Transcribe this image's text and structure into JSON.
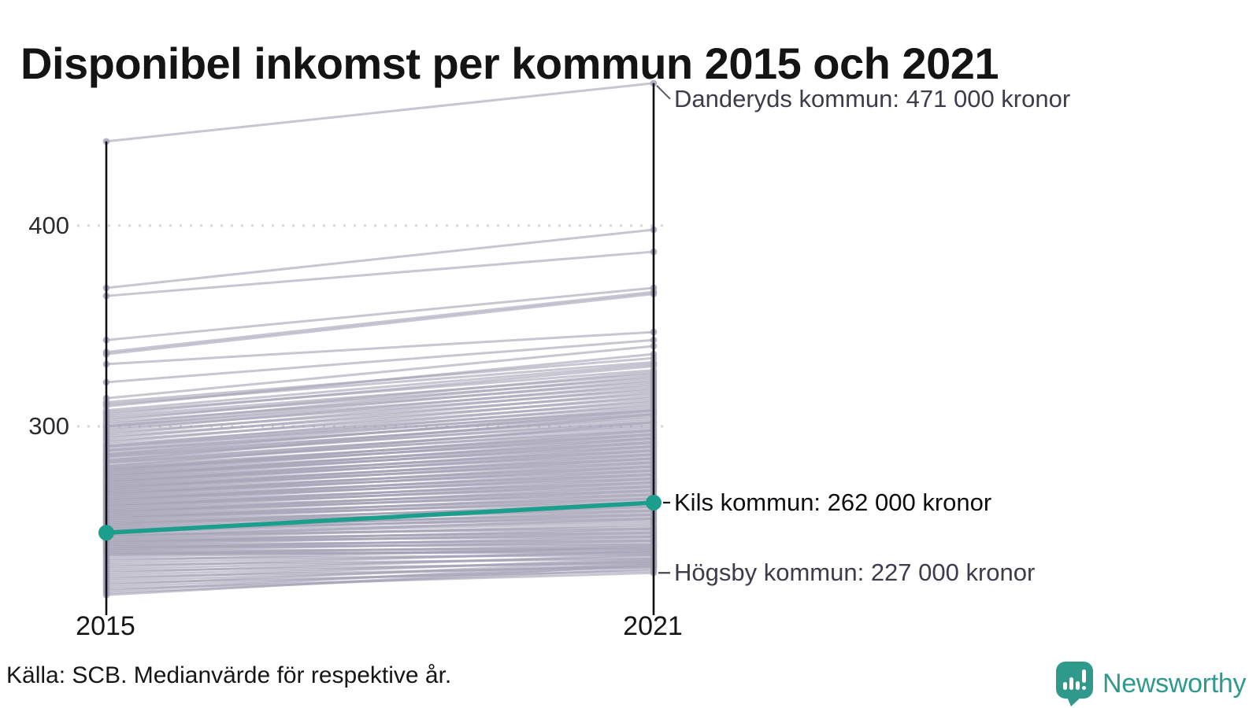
{
  "title": "Disponibel inkomst per kommun 2015 och 2021",
  "source": "Källa: SCB. Medianvärde för respektive år.",
  "logo": {
    "brand": "Newsworthy",
    "color": "#2F998C"
  },
  "chart_data": {
    "type": "line",
    "subtype": "slopegraph",
    "title": "Disponibel inkomst per kommun 2015 och 2021",
    "x_labels": [
      "2015",
      "2021"
    ],
    "y_unit": "tusen kronor",
    "ylim": [
      206,
      480
    ],
    "grid": "dotted horizontal lines at yticks",
    "legend": "none",
    "yticks": [
      {
        "value": 400,
        "label": "400"
      },
      {
        "value": 300,
        "label": "300"
      }
    ],
    "colors": {
      "highlight": "#1B9E8C",
      "background_line": "#A9A5B9",
      "axis": "#101016",
      "gridline": "#D7D5DC",
      "annotation_text": "#3D3C4A",
      "annotation_text_emphasis": "#0E0E12"
    },
    "highlight": {
      "name": "Kils kommun",
      "values": [
        247,
        262
      ]
    },
    "annotations": [
      {
        "label": "Danderyds kommun: 471 000 kronor",
        "value": 471,
        "leader": "diagonal",
        "emphasis": false
      },
      {
        "label": "Kils kommun: 262 000 kronor",
        "value": 262,
        "leader": "horizontal",
        "emphasis": true
      },
      {
        "label": "Högsby kommun: 227 000 kronor",
        "value": 227,
        "leader": "horizontal",
        "emphasis": false
      }
    ],
    "background_series": [
      [
        442,
        471
      ],
      [
        369,
        398
      ],
      [
        365,
        387
      ],
      [
        343,
        369
      ],
      [
        337,
        367
      ],
      [
        336,
        366
      ],
      [
        331,
        347
      ],
      [
        322,
        343
      ],
      [
        314,
        340
      ],
      [
        312,
        334
      ],
      [
        311,
        332
      ],
      [
        310,
        336
      ],
      [
        308,
        331
      ],
      [
        307,
        328
      ],
      [
        306,
        330
      ],
      [
        305,
        326
      ],
      [
        304,
        324
      ],
      [
        303,
        327
      ],
      [
        302,
        322
      ],
      [
        301,
        325
      ],
      [
        300,
        320
      ],
      [
        300,
        323
      ],
      [
        299,
        318
      ],
      [
        298,
        321
      ],
      [
        297,
        316
      ],
      [
        296,
        319
      ],
      [
        295,
        314
      ],
      [
        294,
        317
      ],
      [
        293,
        312
      ],
      [
        292,
        315
      ],
      [
        291,
        310
      ],
      [
        290,
        313
      ],
      [
        290,
        308
      ],
      [
        289,
        311
      ],
      [
        288,
        306
      ],
      [
        288,
        309
      ],
      [
        287,
        307
      ],
      [
        286,
        304
      ],
      [
        286,
        308
      ],
      [
        285,
        302
      ],
      [
        285,
        305
      ],
      [
        284,
        303
      ],
      [
        283,
        300
      ],
      [
        283,
        306
      ],
      [
        282,
        298
      ],
      [
        282,
        301
      ],
      [
        281,
        299
      ],
      [
        280,
        296
      ],
      [
        280,
        302
      ],
      [
        279,
        297
      ],
      [
        279,
        294
      ],
      [
        278,
        295
      ],
      [
        278,
        298
      ],
      [
        277,
        292
      ],
      [
        277,
        296
      ],
      [
        276,
        290
      ],
      [
        276,
        293
      ],
      [
        275,
        294
      ],
      [
        275,
        291
      ],
      [
        274,
        288
      ],
      [
        274,
        292
      ],
      [
        273,
        289
      ],
      [
        273,
        286
      ],
      [
        272,
        290
      ],
      [
        272,
        287
      ],
      [
        271,
        284
      ],
      [
        271,
        288
      ],
      [
        270,
        285
      ],
      [
        270,
        282
      ],
      [
        269,
        286
      ],
      [
        269,
        283
      ],
      [
        268,
        280
      ],
      [
        268,
        284
      ],
      [
        267,
        281
      ],
      [
        267,
        278
      ],
      [
        266,
        282
      ],
      [
        266,
        279
      ],
      [
        265,
        276
      ],
      [
        265,
        280
      ],
      [
        264,
        277
      ],
      [
        264,
        274
      ],
      [
        263,
        278
      ],
      [
        263,
        275
      ],
      [
        262,
        272
      ],
      [
        262,
        276
      ],
      [
        261,
        273
      ],
      [
        261,
        270
      ],
      [
        260,
        274
      ],
      [
        260,
        271
      ],
      [
        259,
        268
      ],
      [
        259,
        272
      ],
      [
        258,
        269
      ],
      [
        258,
        266
      ],
      [
        257,
        270
      ],
      [
        257,
        267
      ],
      [
        256,
        264
      ],
      [
        256,
        268
      ],
      [
        255,
        265
      ],
      [
        255,
        262
      ],
      [
        254,
        266
      ],
      [
        254,
        263
      ],
      [
        253,
        260
      ],
      [
        253,
        264
      ],
      [
        252,
        261
      ],
      [
        252,
        258
      ],
      [
        251,
        262
      ],
      [
        251,
        259
      ],
      [
        250,
        256
      ],
      [
        250,
        260
      ],
      [
        249,
        257
      ],
      [
        249,
        254
      ],
      [
        248,
        258
      ],
      [
        248,
        255
      ],
      [
        247,
        253
      ],
      [
        247,
        256
      ],
      [
        246,
        252
      ],
      [
        246,
        249
      ],
      [
        245,
        254
      ],
      [
        245,
        250
      ],
      [
        244,
        247
      ],
      [
        244,
        251
      ],
      [
        243,
        248
      ],
      [
        243,
        245
      ],
      [
        242,
        249
      ],
      [
        242,
        246
      ],
      [
        241,
        243
      ],
      [
        241,
        247
      ],
      [
        240,
        244
      ],
      [
        240,
        241
      ],
      [
        239,
        245
      ],
      [
        239,
        242
      ],
      [
        238,
        239
      ],
      [
        238,
        243
      ],
      [
        237,
        240
      ],
      [
        237,
        237
      ],
      [
        236,
        241
      ],
      [
        236,
        238
      ],
      [
        235,
        239
      ],
      [
        234,
        236
      ],
      [
        233,
        240
      ],
      [
        232,
        237
      ],
      [
        231,
        234
      ],
      [
        230,
        238
      ],
      [
        229,
        235
      ],
      [
        228,
        232
      ],
      [
        227,
        236
      ],
      [
        226,
        233
      ],
      [
        225,
        230
      ],
      [
        224,
        234
      ],
      [
        223,
        231
      ],
      [
        222,
        228
      ],
      [
        221,
        233
      ],
      [
        220,
        230
      ],
      [
        219,
        227
      ],
      [
        218,
        232
      ],
      [
        217,
        229
      ],
      [
        216,
        231
      ]
    ]
  }
}
